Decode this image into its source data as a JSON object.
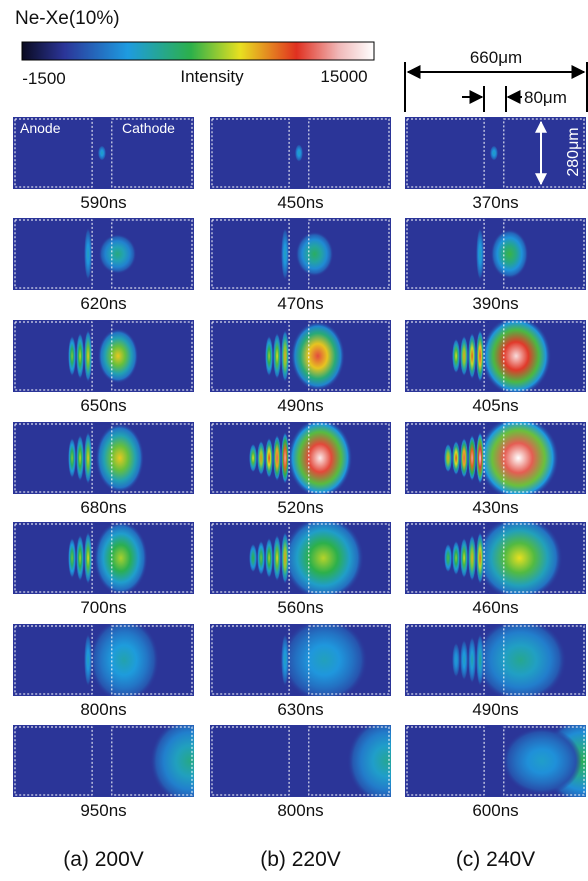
{
  "header": {
    "title": "Ne-Xe(10%)"
  },
  "colorbar": {
    "min": "-1500",
    "label": "Intensity",
    "max": "15000"
  },
  "dimensions": {
    "width": "660μm",
    "gap": "80μm",
    "height": "280μm"
  },
  "electrode_labels": {
    "anode": "Anode",
    "cathode": "Cathode"
  },
  "columns": [
    {
      "label": "(a) 200V",
      "frames": [
        "590ns",
        "620ns",
        "650ns",
        "680ns",
        "700ns",
        "800ns",
        "950ns"
      ]
    },
    {
      "label": "(b) 220V",
      "frames": [
        "450ns",
        "470ns",
        "490ns",
        "520ns",
        "560ns",
        "630ns",
        "800ns"
      ]
    },
    {
      "label": "(c) 240V",
      "frames": [
        "370ns",
        "390ns",
        "405ns",
        "430ns",
        "460ns",
        "490ns",
        "600ns"
      ]
    }
  ]
}
